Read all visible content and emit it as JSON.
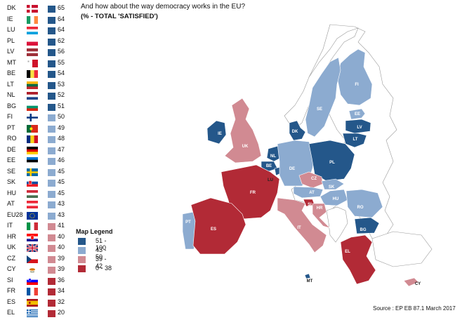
{
  "title": "And how about the way democracy works in the EU?",
  "subtitle": "(% - TOTAL 'SATISFIED')",
  "colors": {
    "c51_100": "#24578a",
    "c43_50": "#8cabd0",
    "c39_42": "#d18a92",
    "c0_38": "#b22a36"
  },
  "legend": {
    "title": "Map Legend",
    "items": [
      {
        "label": "51 - 100",
        "color": "#24578a"
      },
      {
        "label": "43 - 50",
        "color": "#8cabd0"
      },
      {
        "label": "39 - 42",
        "color": "#d18a92"
      },
      {
        "label": "0 - 38",
        "color": "#b22a36"
      }
    ]
  },
  "countries": [
    {
      "code": "DK",
      "value": "65",
      "color": "#24578a"
    },
    {
      "code": "IE",
      "value": "64",
      "color": "#24578a"
    },
    {
      "code": "LU",
      "value": "64",
      "color": "#24578a"
    },
    {
      "code": "PL",
      "value": "62",
      "color": "#24578a"
    },
    {
      "code": "LV",
      "value": "56",
      "color": "#24578a"
    },
    {
      "code": "MT",
      "value": "55",
      "color": "#24578a"
    },
    {
      "code": "BE",
      "value": "54",
      "color": "#24578a"
    },
    {
      "code": "LT",
      "value": "53",
      "color": "#24578a"
    },
    {
      "code": "NL",
      "value": "52",
      "color": "#24578a"
    },
    {
      "code": "BG",
      "value": "51",
      "color": "#24578a"
    },
    {
      "code": "FI",
      "value": "50",
      "color": "#8cabd0"
    },
    {
      "code": "PT",
      "value": "49",
      "color": "#8cabd0"
    },
    {
      "code": "RO",
      "value": "48",
      "color": "#8cabd0"
    },
    {
      "code": "DE",
      "value": "47",
      "color": "#8cabd0"
    },
    {
      "code": "EE",
      "value": "46",
      "color": "#8cabd0"
    },
    {
      "code": "SE",
      "value": "45",
      "color": "#8cabd0"
    },
    {
      "code": "SK",
      "value": "45",
      "color": "#8cabd0"
    },
    {
      "code": "HU",
      "value": "45",
      "color": "#8cabd0"
    },
    {
      "code": "AT",
      "value": "43",
      "color": "#8cabd0"
    },
    {
      "code": "EU28",
      "value": "43",
      "color": "#8cabd0"
    },
    {
      "code": "IT",
      "value": "41",
      "color": "#d18a92"
    },
    {
      "code": "HR",
      "value": "40",
      "color": "#d18a92"
    },
    {
      "code": "UK",
      "value": "40",
      "color": "#d18a92"
    },
    {
      "code": "CZ",
      "value": "39",
      "color": "#d18a92"
    },
    {
      "code": "CY",
      "value": "39",
      "color": "#d18a92"
    },
    {
      "code": "SI",
      "value": "36",
      "color": "#b22a36"
    },
    {
      "code": "FR",
      "value": "34",
      "color": "#b22a36"
    },
    {
      "code": "ES",
      "value": "32",
      "color": "#b22a36"
    },
    {
      "code": "EL",
      "value": "20",
      "color": "#b22a36"
    }
  ],
  "map_labels": {
    "FI": "FI",
    "SE": "SE",
    "EE": "EE",
    "LV": "LV",
    "LT": "LT",
    "DK": "DK",
    "IE": "IE",
    "UK": "UK",
    "NL": "NL",
    "BE": "BE",
    "LU": "LU",
    "DE": "DE",
    "PL": "PL",
    "CZ": "CZ",
    "SK": "SK",
    "AT": "AT",
    "HU": "HU",
    "RO": "RO",
    "BG": "BG",
    "FR": "FR",
    "SI": "SI",
    "HR": "HR",
    "IT": "IT",
    "PT": "PT",
    "ES": "ES",
    "EL": "EL",
    "MT": "MT",
    "CY": "CY"
  },
  "source": "Source : EP EB 87.1 March 2017"
}
